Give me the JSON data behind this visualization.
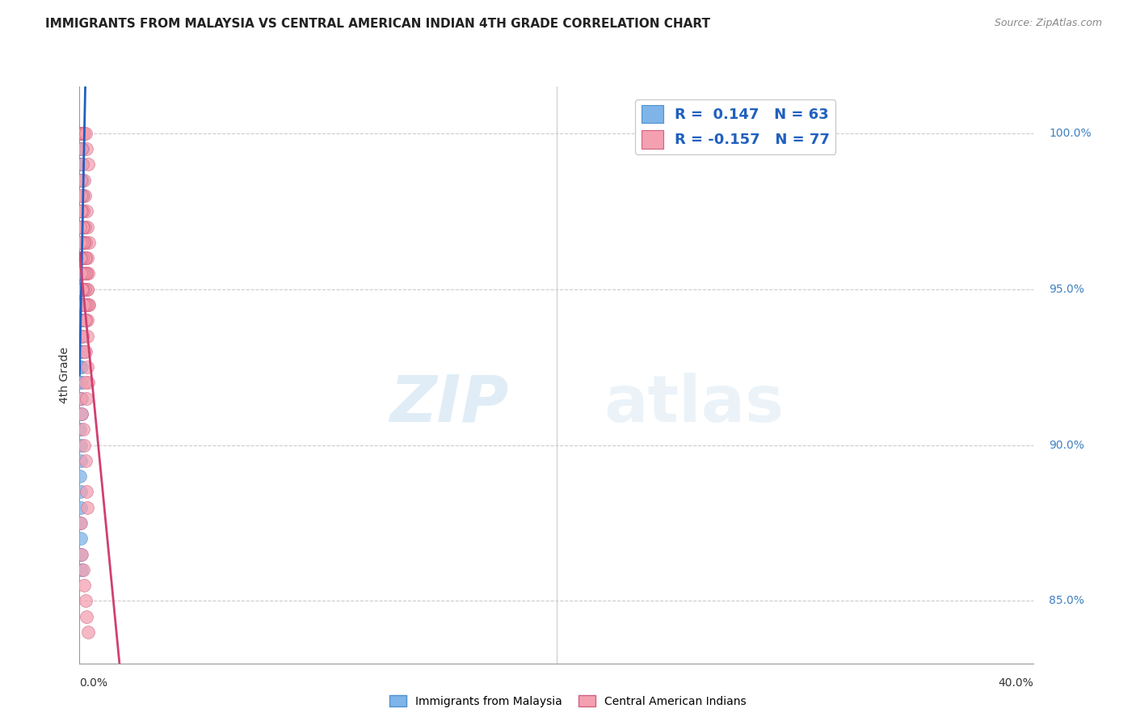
{
  "title": "IMMIGRANTS FROM MALAYSIA VS CENTRAL AMERICAN INDIAN 4TH GRADE CORRELATION CHART",
  "source": "Source: ZipAtlas.com",
  "ylabel": "4th Grade",
  "r_malaysia": 0.147,
  "n_malaysia": 63,
  "r_central": -0.157,
  "n_central": 77,
  "color_malaysia": "#7EB4E8",
  "color_central": "#F4A0B0",
  "color_malaysia_edge": "#5090D0",
  "color_central_edge": "#D06080",
  "trend_color_malaysia": "#2060C0",
  "trend_color_central": "#D04070",
  "legend_label_malaysia": "Immigrants from Malaysia",
  "legend_label_central": "Central American Indians",
  "watermark_zip": "ZIP",
  "watermark_atlas": "atlas",
  "xmin": 0.0,
  "xmax": 40.0,
  "ymin": 83.0,
  "ymax": 101.5,
  "yticks": [
    85.0,
    90.0,
    95.0,
    100.0
  ],
  "ytick_labels": [
    "85.0%",
    "90.0%",
    "95.0%",
    "100.0%"
  ],
  "malaysia_x": [
    0.05,
    0.1,
    0.12,
    0.15,
    0.08,
    0.06,
    0.04,
    0.09,
    0.11,
    0.13,
    0.07,
    0.05,
    0.08,
    0.06,
    0.1,
    0.12,
    0.14,
    0.09,
    0.07,
    0.05,
    0.03,
    0.02,
    0.04,
    0.06,
    0.08,
    0.1,
    0.12,
    0.05,
    0.07,
    0.09,
    0.11,
    0.13,
    0.03,
    0.05,
    0.07,
    0.09,
    0.11,
    0.13,
    0.15,
    0.04,
    0.06,
    0.08,
    0.1,
    0.12,
    0.03,
    0.05,
    0.07,
    0.09,
    0.02,
    0.04,
    0.06,
    0.08,
    0.1,
    0.02,
    0.04,
    0.06,
    0.03,
    0.05,
    0.07,
    0.02,
    0.04,
    0.06,
    0.08
  ],
  "malaysia_y": [
    100.0,
    100.0,
    100.0,
    100.0,
    100.0,
    100.0,
    100.0,
    100.0,
    99.5,
    99.5,
    99.5,
    99.0,
    99.0,
    98.5,
    98.5,
    98.5,
    98.0,
    97.5,
    97.5,
    97.5,
    97.5,
    97.0,
    97.0,
    97.0,
    97.0,
    96.5,
    96.5,
    96.5,
    96.0,
    96.0,
    96.0,
    96.0,
    95.5,
    95.5,
    95.5,
    95.0,
    95.0,
    95.0,
    95.0,
    94.5,
    94.5,
    94.0,
    94.0,
    93.5,
    93.5,
    93.0,
    93.0,
    92.5,
    92.5,
    92.0,
    92.0,
    91.5,
    91.0,
    90.5,
    90.0,
    89.5,
    89.0,
    88.5,
    88.0,
    87.5,
    87.0,
    86.5,
    86.0
  ],
  "central_x": [
    0.05,
    0.1,
    0.15,
    0.2,
    0.25,
    0.3,
    0.35,
    0.08,
    0.12,
    0.18,
    0.22,
    0.28,
    0.32,
    0.38,
    0.06,
    0.11,
    0.16,
    0.21,
    0.26,
    0.31,
    0.36,
    0.04,
    0.09,
    0.14,
    0.19,
    0.24,
    0.29,
    0.34,
    0.39,
    0.07,
    0.13,
    0.17,
    0.23,
    0.27,
    0.33,
    0.37,
    0.03,
    0.08,
    0.13,
    0.18,
    0.23,
    0.28,
    0.33,
    0.02,
    0.07,
    0.12,
    0.17,
    0.22,
    0.27,
    0.32,
    0.01,
    0.06,
    0.11,
    0.16,
    0.21,
    0.26,
    0.31,
    0.36,
    0.04,
    0.09,
    0.14,
    0.19,
    0.24,
    0.29,
    0.34,
    0.05,
    0.1,
    0.15,
    0.2,
    0.25,
    0.3,
    0.35,
    0.08,
    0.13,
    0.18,
    0.23,
    0.28
  ],
  "central_y": [
    100.0,
    100.0,
    100.0,
    100.0,
    100.0,
    99.5,
    99.0,
    99.5,
    99.0,
    98.5,
    98.0,
    97.5,
    97.0,
    96.5,
    98.5,
    98.0,
    97.5,
    97.0,
    96.5,
    96.0,
    95.5,
    98.0,
    97.5,
    97.0,
    96.5,
    96.0,
    95.5,
    95.0,
    94.5,
    97.5,
    97.0,
    96.5,
    96.0,
    95.5,
    95.0,
    94.5,
    97.0,
    96.5,
    96.0,
    95.5,
    95.0,
    94.5,
    94.0,
    96.5,
    96.0,
    95.5,
    95.0,
    94.5,
    94.0,
    93.5,
    96.0,
    95.5,
    95.0,
    94.5,
    94.0,
    93.0,
    92.5,
    92.0,
    91.5,
    91.0,
    90.5,
    90.0,
    89.5,
    88.5,
    88.0,
    87.5,
    86.5,
    86.0,
    85.5,
    85.0,
    84.5,
    84.0,
    95.0,
    93.5,
    93.0,
    92.0,
    91.5
  ]
}
